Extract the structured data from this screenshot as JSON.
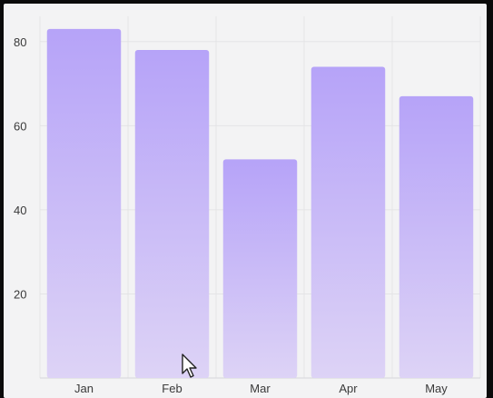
{
  "chart_data": {
    "type": "bar",
    "categories": [
      "Jan",
      "Feb",
      "Mar",
      "Apr",
      "May"
    ],
    "values": [
      83,
      78,
      52,
      74,
      67
    ],
    "title": "",
    "xlabel": "",
    "ylabel": "",
    "ylim": [
      0,
      86
    ],
    "yticks": [
      20,
      40,
      60,
      80
    ],
    "grid": true,
    "legend": "none",
    "colors": {
      "bar_top": "#b6a3f8",
      "bar_bottom": "#ddd3f6",
      "background": "#f3f3f4",
      "frame": "#0b0b0b"
    }
  },
  "icons": {
    "cursor": "mouse-pointer-icon"
  }
}
